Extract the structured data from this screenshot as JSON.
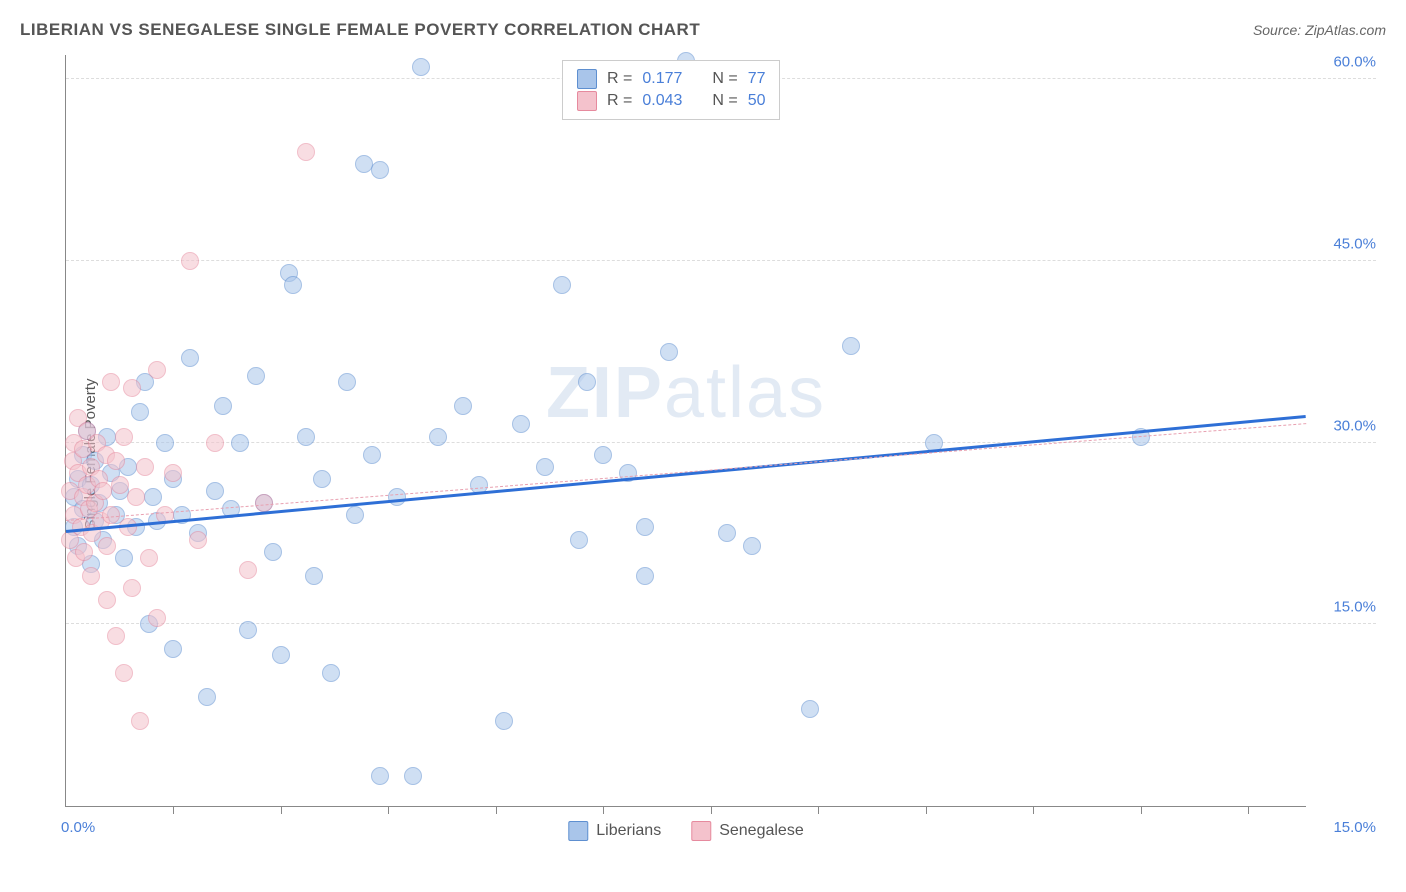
{
  "title": "LIBERIAN VS SENEGALESE SINGLE FEMALE POVERTY CORRELATION CHART",
  "source_label": "Source: ZipAtlas.com",
  "watermark": "ZIPatlas",
  "chart": {
    "type": "scatter",
    "y_axis_label": "Single Female Poverty",
    "background_color": "#ffffff",
    "grid_color": "#dddddd",
    "axis_color": "#888888",
    "tick_label_color": "#4a7fd8",
    "title_color": "#555555",
    "title_fontsize": 17,
    "label_fontsize": 15,
    "xlim": [
      0,
      15
    ],
    "ylim": [
      0,
      62
    ],
    "x_end_labels": [
      "0.0%",
      "15.0%"
    ],
    "y_ticks": [
      15,
      30,
      45,
      60
    ],
    "y_tick_labels": [
      "15.0%",
      "30.0%",
      "45.0%",
      "60.0%"
    ],
    "x_tick_positions": [
      1.3,
      2.6,
      3.9,
      5.2,
      6.5,
      7.8,
      9.1,
      10.4,
      11.7,
      13.0,
      14.3
    ],
    "point_radius": 9,
    "point_opacity": 0.55,
    "series": [
      {
        "name": "Liberians",
        "color_fill": "#a9c5ea",
        "color_stroke": "#5e8fd0",
        "r_value": "0.177",
        "n_value": "77",
        "trend": {
          "x1": 0,
          "y1": 22.5,
          "x2": 15,
          "y2": 32.0,
          "width": 3,
          "dash": "solid",
          "color": "#2e6fd6"
        },
        "points": [
          [
            0.1,
            25.5
          ],
          [
            0.1,
            23.0
          ],
          [
            0.15,
            27.0
          ],
          [
            0.15,
            21.5
          ],
          [
            0.2,
            24.5
          ],
          [
            0.2,
            29.0
          ],
          [
            0.25,
            31.0
          ],
          [
            0.3,
            26.5
          ],
          [
            0.3,
            20.0
          ],
          [
            0.35,
            23.5
          ],
          [
            0.35,
            28.5
          ],
          [
            0.4,
            25.0
          ],
          [
            0.45,
            22.0
          ],
          [
            0.5,
            30.5
          ],
          [
            0.55,
            27.5
          ],
          [
            0.6,
            24.0
          ],
          [
            0.65,
            26.0
          ],
          [
            0.7,
            20.5
          ],
          [
            0.75,
            28.0
          ],
          [
            0.85,
            23.0
          ],
          [
            0.9,
            32.5
          ],
          [
            0.95,
            35.0
          ],
          [
            1.0,
            15.0
          ],
          [
            1.05,
            25.5
          ],
          [
            1.1,
            23.5
          ],
          [
            1.2,
            30.0
          ],
          [
            1.3,
            27.0
          ],
          [
            1.3,
            13.0
          ],
          [
            1.4,
            24.0
          ],
          [
            1.5,
            37.0
          ],
          [
            1.6,
            22.5
          ],
          [
            1.7,
            9.0
          ],
          [
            1.8,
            26.0
          ],
          [
            1.9,
            33.0
          ],
          [
            2.0,
            24.5
          ],
          [
            2.1,
            30.0
          ],
          [
            2.2,
            14.5
          ],
          [
            2.3,
            35.5
          ],
          [
            2.4,
            25.0
          ],
          [
            2.5,
            21.0
          ],
          [
            2.6,
            12.5
          ],
          [
            2.7,
            44.0
          ],
          [
            2.75,
            43.0
          ],
          [
            2.9,
            30.5
          ],
          [
            3.0,
            19.0
          ],
          [
            3.1,
            27.0
          ],
          [
            3.2,
            11.0
          ],
          [
            3.4,
            35.0
          ],
          [
            3.5,
            24.0
          ],
          [
            3.6,
            53.0
          ],
          [
            3.7,
            29.0
          ],
          [
            3.8,
            2.5
          ],
          [
            3.8,
            52.5
          ],
          [
            4.0,
            25.5
          ],
          [
            4.2,
            2.5
          ],
          [
            4.3,
            61.0
          ],
          [
            4.5,
            30.5
          ],
          [
            4.8,
            33.0
          ],
          [
            5.0,
            26.5
          ],
          [
            5.3,
            7.0
          ],
          [
            5.5,
            31.5
          ],
          [
            5.8,
            28.0
          ],
          [
            6.0,
            43.0
          ],
          [
            6.2,
            22.0
          ],
          [
            6.3,
            35.0
          ],
          [
            6.5,
            29.0
          ],
          [
            6.8,
            27.5
          ],
          [
            7.0,
            23.0
          ],
          [
            7.0,
            19.0
          ],
          [
            7.3,
            37.5
          ],
          [
            7.5,
            61.5
          ],
          [
            8.0,
            22.5
          ],
          [
            8.3,
            21.5
          ],
          [
            9.0,
            8.0
          ],
          [
            9.5,
            38.0
          ],
          [
            10.5,
            30.0
          ],
          [
            13.0,
            30.5
          ]
        ]
      },
      {
        "name": "Senegalese",
        "color_fill": "#f4c2cc",
        "color_stroke": "#e68a9e",
        "r_value": "0.043",
        "n_value": "50",
        "trend": {
          "x1": 0,
          "y1": 23.5,
          "x2": 15,
          "y2": 31.5,
          "width": 1.5,
          "dash": "dashed",
          "color": "#e8a0b0"
        },
        "points": [
          [
            0.05,
            26.0
          ],
          [
            0.05,
            22.0
          ],
          [
            0.08,
            28.5
          ],
          [
            0.1,
            30.0
          ],
          [
            0.1,
            24.0
          ],
          [
            0.12,
            20.5
          ],
          [
            0.15,
            27.5
          ],
          [
            0.15,
            32.0
          ],
          [
            0.18,
            23.0
          ],
          [
            0.2,
            25.5
          ],
          [
            0.2,
            29.5
          ],
          [
            0.22,
            21.0
          ],
          [
            0.25,
            26.5
          ],
          [
            0.25,
            31.0
          ],
          [
            0.28,
            24.5
          ],
          [
            0.3,
            28.0
          ],
          [
            0.3,
            19.0
          ],
          [
            0.32,
            22.5
          ],
          [
            0.35,
            25.0
          ],
          [
            0.38,
            30.0
          ],
          [
            0.4,
            27.0
          ],
          [
            0.42,
            23.5
          ],
          [
            0.45,
            26.0
          ],
          [
            0.48,
            29.0
          ],
          [
            0.5,
            17.0
          ],
          [
            0.5,
            21.5
          ],
          [
            0.55,
            24.0
          ],
          [
            0.55,
            35.0
          ],
          [
            0.6,
            28.5
          ],
          [
            0.6,
            14.0
          ],
          [
            0.65,
            26.5
          ],
          [
            0.7,
            11.0
          ],
          [
            0.7,
            30.5
          ],
          [
            0.75,
            23.0
          ],
          [
            0.8,
            34.5
          ],
          [
            0.8,
            18.0
          ],
          [
            0.85,
            25.5
          ],
          [
            0.9,
            7.0
          ],
          [
            0.95,
            28.0
          ],
          [
            1.0,
            20.5
          ],
          [
            1.1,
            36.0
          ],
          [
            1.1,
            15.5
          ],
          [
            1.2,
            24.0
          ],
          [
            1.3,
            27.5
          ],
          [
            1.5,
            45.0
          ],
          [
            1.6,
            22.0
          ],
          [
            1.8,
            30.0
          ],
          [
            2.2,
            19.5
          ],
          [
            2.4,
            25.0
          ],
          [
            2.9,
            54.0
          ]
        ]
      }
    ],
    "legend_top_labels": {
      "r_prefix": "R  =",
      "n_prefix": "N  ="
    },
    "legend_bottom_labels": [
      "Liberians",
      "Senegalese"
    ]
  }
}
